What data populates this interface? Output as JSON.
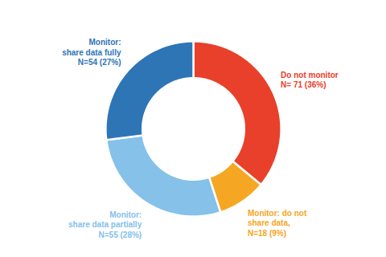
{
  "chart_data": {
    "type": "donut",
    "categories": [
      "Do not monitor\nN= 71 (36%)",
      "Monitor: do not\nshare data,\nN=18 (9%)",
      "Monitor:\nshare data partially\nN=55 (28%)",
      "Monitor:\nshare data fully\nN=54 (27%)"
    ],
    "values": [
      36,
      9,
      28,
      27
    ],
    "colors": [
      "#E8402A",
      "#F5A623",
      "#85C1E9",
      "#2E75B6"
    ]
  }
}
